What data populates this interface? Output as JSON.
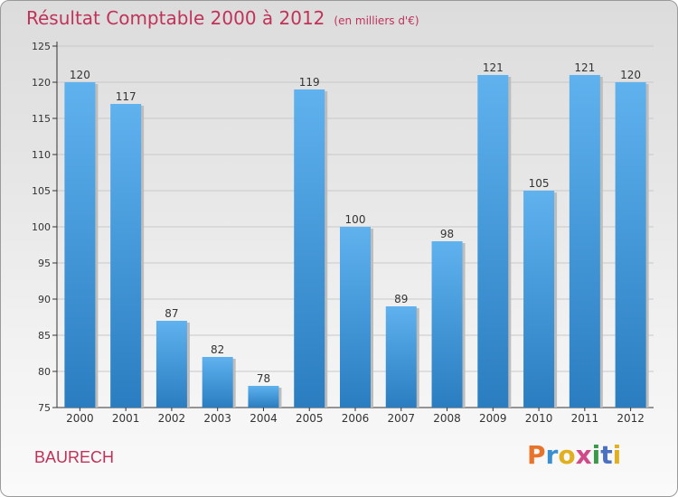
{
  "header": {
    "title": "Résultat Comptable 2000 à 2012",
    "subtitle": "(en milliers d'€)"
  },
  "footer": {
    "commune": "BAURECH",
    "logo_text": "Proxiti",
    "logo_colors": [
      "#e8732a",
      "#3a8fd0",
      "#e0b020",
      "#d04a8a",
      "#3a9a4a",
      "#4a70c0",
      "#e0b020"
    ]
  },
  "colors": {
    "bar_light": "#5fb2ee",
    "bar_dark": "#2a7dc0",
    "accent": "#c0325a"
  },
  "chart_data": {
    "type": "bar",
    "categories": [
      "2000",
      "2001",
      "2002",
      "2003",
      "2004",
      "2005",
      "2006",
      "2007",
      "2008",
      "2009",
      "2010",
      "2011",
      "2012"
    ],
    "values": [
      120,
      117,
      87,
      82,
      78,
      119,
      100,
      89,
      98,
      121,
      105,
      121,
      120
    ],
    "ylim": [
      75,
      125
    ],
    "yticks": [
      75,
      80,
      85,
      90,
      95,
      100,
      105,
      110,
      115,
      120,
      125
    ],
    "grid": true,
    "xlabel": "",
    "ylabel": ""
  }
}
